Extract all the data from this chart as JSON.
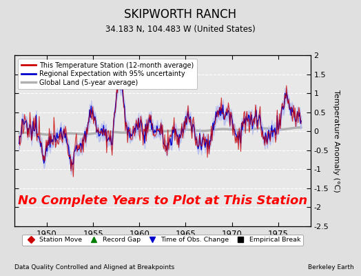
{
  "title": "SKIPWORTH RANCH",
  "subtitle": "34.183 N, 104.483 W (United States)",
  "xlabel_bottom": "Data Quality Controlled and Aligned at Breakpoints",
  "xlabel_right": "Berkeley Earth",
  "ylabel": "Temperature Anomaly (°C)",
  "no_data_text": "No Complete Years to Plot at This Station",
  "no_data_color": "red",
  "no_data_fontsize": 13,
  "xmin": 1946.5,
  "xmax": 1978.5,
  "ymin": -2.5,
  "ymax": 2.0,
  "yticks": [
    -2.5,
    -2,
    -1.5,
    -1,
    -0.5,
    0,
    0.5,
    1,
    1.5,
    2
  ],
  "ytick_labels": [
    "-2.5",
    "-2",
    "-1.5",
    "-1",
    "-0.5",
    "0",
    "0.5",
    "1",
    "1.5",
    "2"
  ],
  "xticks": [
    1950,
    1955,
    1960,
    1965,
    1970,
    1975
  ],
  "bg_color": "#e0e0e0",
  "plot_bg_color": "#e8e8e8",
  "grid_color": "#ffffff",
  "station_line_color": "#cc0000",
  "regional_line_color": "#0000cc",
  "regional_fill_color": "#b0b8f0",
  "global_line_color": "#b0b0b0",
  "legend_entries": [
    "This Temperature Station (12-month average)",
    "Regional Expectation with 95% uncertainty",
    "Global Land (5-year average)"
  ],
  "bottom_legend": [
    {
      "label": "Station Move",
      "color": "#cc0000",
      "marker": "D"
    },
    {
      "label": "Record Gap",
      "color": "green",
      "marker": "^"
    },
    {
      "label": "Time of Obs. Change",
      "color": "#0000cc",
      "marker": "v"
    },
    {
      "label": "Empirical Break",
      "color": "black",
      "marker": "s"
    }
  ]
}
